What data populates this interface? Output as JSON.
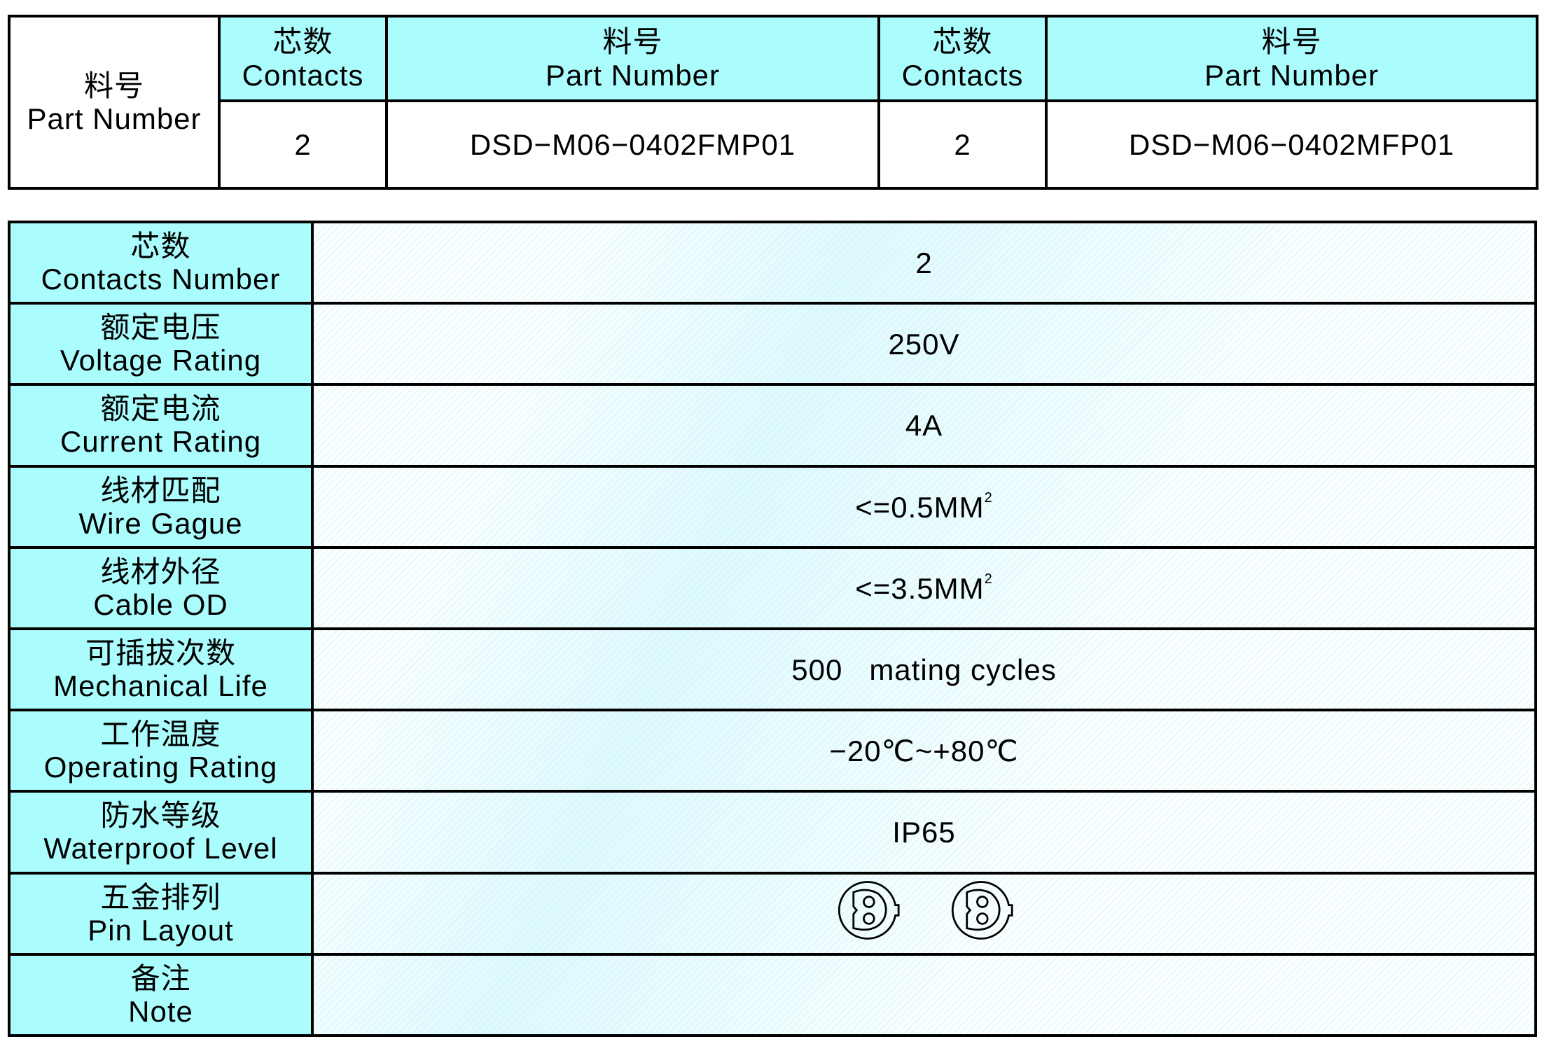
{
  "part_table": {
    "row_header": {
      "zh": "料号",
      "en": "Part Number"
    },
    "columns": [
      {
        "header_zh": "芯数",
        "header_en": "Contacts",
        "value": "2"
      },
      {
        "header_zh": "料号",
        "header_en": "Part Number",
        "value": "DSD−M06−0402FMP01"
      },
      {
        "header_zh": "芯数",
        "header_en": "Contacts",
        "value": "2"
      },
      {
        "header_zh": "料号",
        "header_en": "Part Number",
        "value": "DSD−M06−0402MFP01"
      }
    ]
  },
  "spec_table": {
    "rows": [
      {
        "zh": "芯数",
        "en": "Contacts Number",
        "value": "2"
      },
      {
        "zh": "额定电压",
        "en": "Voltage Rating",
        "value": "250V"
      },
      {
        "zh": "额定电流",
        "en": "Current Rating",
        "value": "4A"
      },
      {
        "zh": "线材匹配",
        "en": "Wire Gague",
        "value": "<=0.5MM",
        "sup": "2"
      },
      {
        "zh": "线材外径",
        "en": "Cable OD",
        "value": "<=3.5MM",
        "sup": "2"
      },
      {
        "zh": "可插拔次数",
        "en": "Mechanical Life",
        "value": "500   mating cycles"
      },
      {
        "zh": "工作温度",
        "en": "Operating Rating",
        "value": "−20℃~+80℃"
      },
      {
        "zh": "防水等级",
        "en": "Waterproof Level",
        "value": "IP65"
      },
      {
        "zh": "五金排列",
        "en": "Pin Layout",
        "icons": [
          "pin-layout-2pin-icon",
          "pin-layout-2pin-icon"
        ]
      },
      {
        "zh": "备注",
        "en": "Note",
        "value": ""
      }
    ]
  },
  "colors": {
    "header_fill": "#aafcfd",
    "border": "#000000"
  }
}
